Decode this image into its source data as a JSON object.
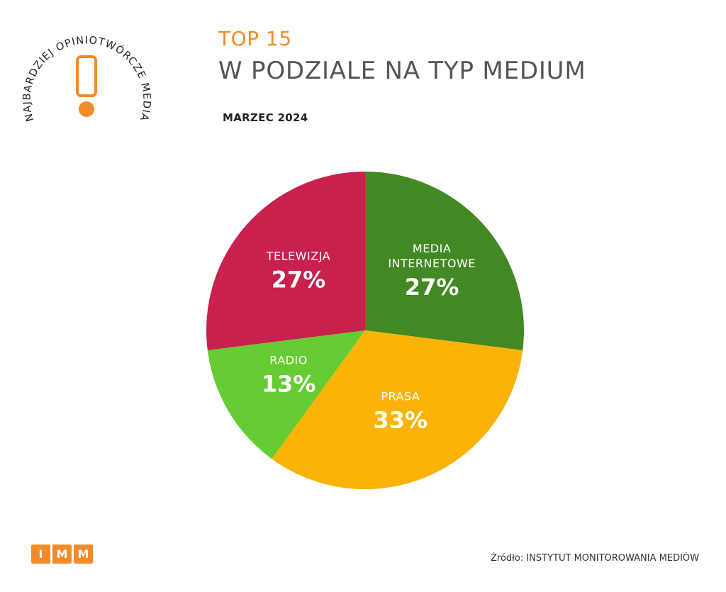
{
  "badge": {
    "arc_text": "NAJBARDZIEJ OPINIOTWÓRCZE MEDIA",
    "accent_color": "#f28b2a"
  },
  "header": {
    "top_label": "TOP 15",
    "title": "W PODZIALE NA TYP MEDIUM",
    "period": "MARZEC 2024"
  },
  "chart_data": {
    "type": "pie",
    "title": "W PODZIALE NA TYP MEDIUM",
    "slices": [
      {
        "name": "MEDIA INTERNETOWE",
        "lines": [
          "MEDIA",
          "INTERNETOWE"
        ],
        "value": 27,
        "label": "27%",
        "color": "#428923"
      },
      {
        "name": "PRASA",
        "lines": [
          "PRASA"
        ],
        "value": 33,
        "label": "33%",
        "color": "#fbb308"
      },
      {
        "name": "RADIO",
        "lines": [
          "RADIO"
        ],
        "value": 13,
        "label": "13%",
        "color": "#66cc33"
      },
      {
        "name": "TELEWIZJA",
        "lines": [
          "TELEWIZJA"
        ],
        "value": 27,
        "label": "27%",
        "color": "#c8214d"
      }
    ],
    "start": "12 o'clock",
    "direction": "clockwise",
    "legend": "labels on slices"
  },
  "footer": {
    "logo_letters": [
      "I",
      "M",
      "M"
    ],
    "source": "Źródło: INSTYTUT MONITOROWANIA MEDIÓW"
  }
}
